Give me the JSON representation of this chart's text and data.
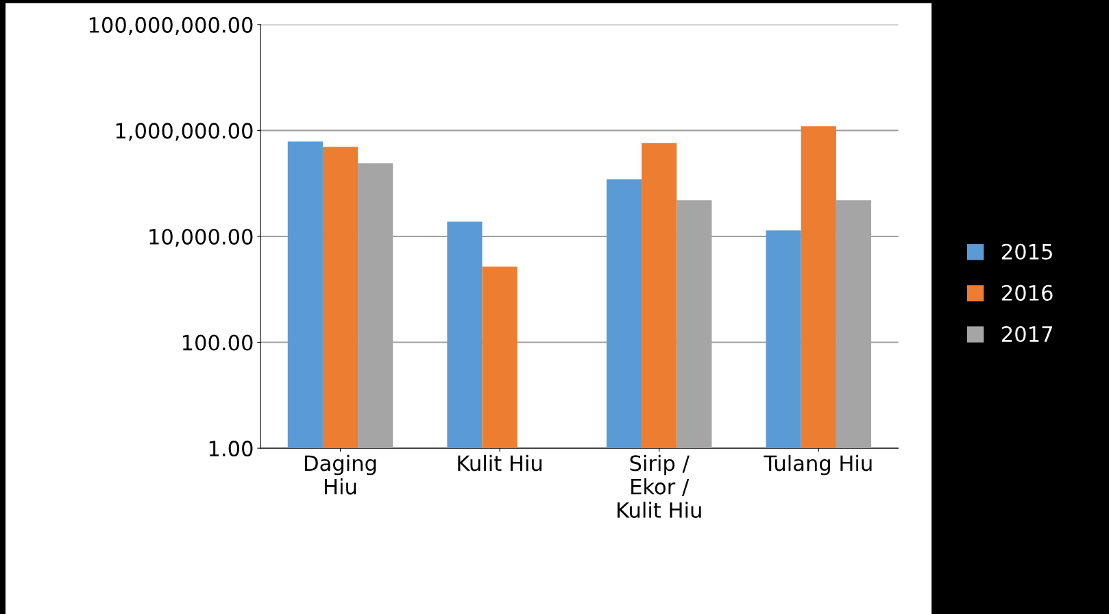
{
  "chart_data": {
    "type": "bar",
    "categories": [
      "Daging\nHiu",
      "Kulit Hiu",
      "Sirip /\nEkor /\nKulit Hiu",
      "Tulang Hiu"
    ],
    "series": [
      {
        "name": "2015",
        "color": "#5b9bd5",
        "values": [
          620000,
          19000,
          120000,
          13000
        ]
      },
      {
        "name": "2016",
        "color": "#ed7d31",
        "values": [
          490000,
          2700,
          580000,
          1200000
        ]
      },
      {
        "name": "2017",
        "color": "#a5a5a5",
        "values": [
          240000,
          null,
          48000,
          48000
        ]
      }
    ],
    "log": true,
    "ylim": [
      1,
      100000000
    ],
    "yticks": [
      {
        "value": 1,
        "label": "1.00"
      },
      {
        "value": 100,
        "label": "100.00"
      },
      {
        "value": 10000,
        "label": "10,000.00"
      },
      {
        "value": 1000000,
        "label": "1,000,000.00"
      },
      {
        "value": 100000000,
        "label": "100,000,000.00"
      }
    ],
    "grid": "y",
    "legend": "right"
  }
}
